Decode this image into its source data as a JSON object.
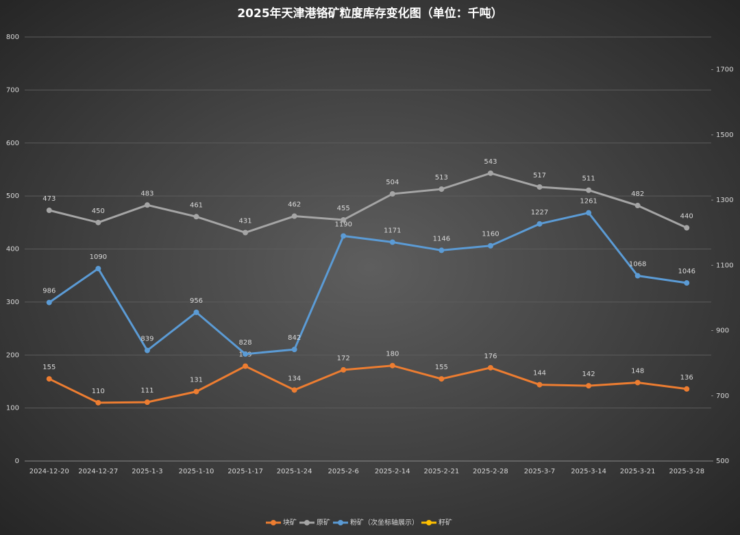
{
  "chart_data": {
    "type": "line",
    "title": "2025年天津港铬矿粒度库存变化图（单位：千吨）",
    "categories": [
      "2024-12-20",
      "2024-12-27",
      "2025-1-3",
      "2025-1-10",
      "2025-1-17",
      "2025-1-24",
      "2025-2-6",
      "2025-2-14",
      "2025-2-21",
      "2025-2-28",
      "2025-3-7",
      "2025-3-14",
      "2025-3-21",
      "2025-3-28"
    ],
    "series": [
      {
        "name": "块矿",
        "color": "#ed7d31",
        "values": [
          155,
          110,
          111,
          131,
          179,
          134,
          172,
          180,
          155,
          176,
          144,
          142,
          148,
          136
        ]
      },
      {
        "name": "原矿",
        "color": "#a5a5a5",
        "values": [
          473,
          450,
          483,
          461,
          431,
          462,
          455,
          504,
          513,
          543,
          517,
          511,
          482,
          440
        ]
      },
      {
        "name": "粉矿（次坐标轴展示）",
        "color": "#5b9bd5",
        "axis": "y2",
        "values": [
          986,
          1090,
          839,
          956,
          828,
          842,
          1190,
          1171,
          1146,
          1160,
          1227,
          1261,
          1068,
          1046
        ]
      },
      {
        "name": "籽矿",
        "color": "#ffc000",
        "values": [
          null,
          null,
          null,
          null,
          null,
          null,
          null,
          null,
          null,
          null,
          null,
          null,
          null,
          null
        ]
      }
    ],
    "ylim": [
      0,
      800
    ],
    "yticks": [
      0,
      100,
      200,
      300,
      400,
      500,
      600,
      700,
      800
    ],
    "y2lim": [
      500,
      1800
    ],
    "y2ticks": [
      500,
      700,
      900,
      1100,
      1300,
      1500,
      1700
    ],
    "grid": true,
    "legend": "bottom"
  }
}
